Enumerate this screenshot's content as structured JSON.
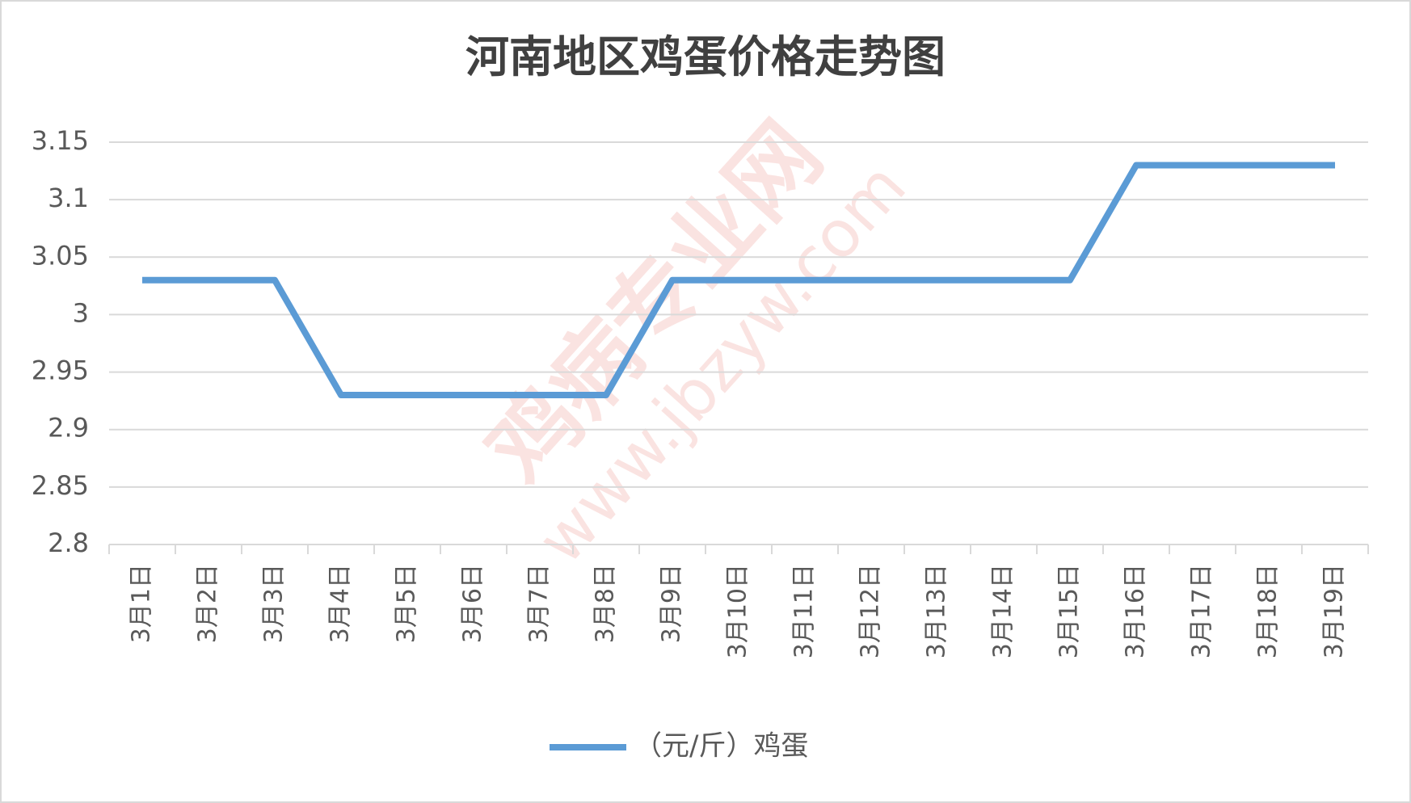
{
  "chart_data": {
    "type": "line",
    "title": "河南地区鸡蛋价格走势图",
    "categories": [
      "3月1日",
      "3月2日",
      "3月3日",
      "3月4日",
      "3月5日",
      "3月6日",
      "3月7日",
      "3月8日",
      "3月9日",
      "3月10日",
      "3月11日",
      "3月12日",
      "3月13日",
      "3月14日",
      "3月15日",
      "3月16日",
      "3月17日",
      "3月18日",
      "3月19日"
    ],
    "series": [
      {
        "name": "（元/斤）鸡蛋",
        "color": "#5b9bd5",
        "values": [
          3.03,
          3.03,
          3.03,
          2.93,
          2.93,
          2.93,
          2.93,
          2.93,
          3.03,
          3.03,
          3.03,
          3.03,
          3.03,
          3.03,
          3.03,
          3.13,
          3.13,
          3.13,
          3.13
        ]
      }
    ],
    "ylim": [
      2.8,
      3.15
    ],
    "yticks": [
      2.8,
      2.85,
      2.9,
      2.95,
      3,
      3.05,
      3.1,
      3.15
    ],
    "grid": true,
    "legend": "bottom",
    "watermark": [
      "鸡病专业网",
      "www.jbzyw.com"
    ]
  }
}
